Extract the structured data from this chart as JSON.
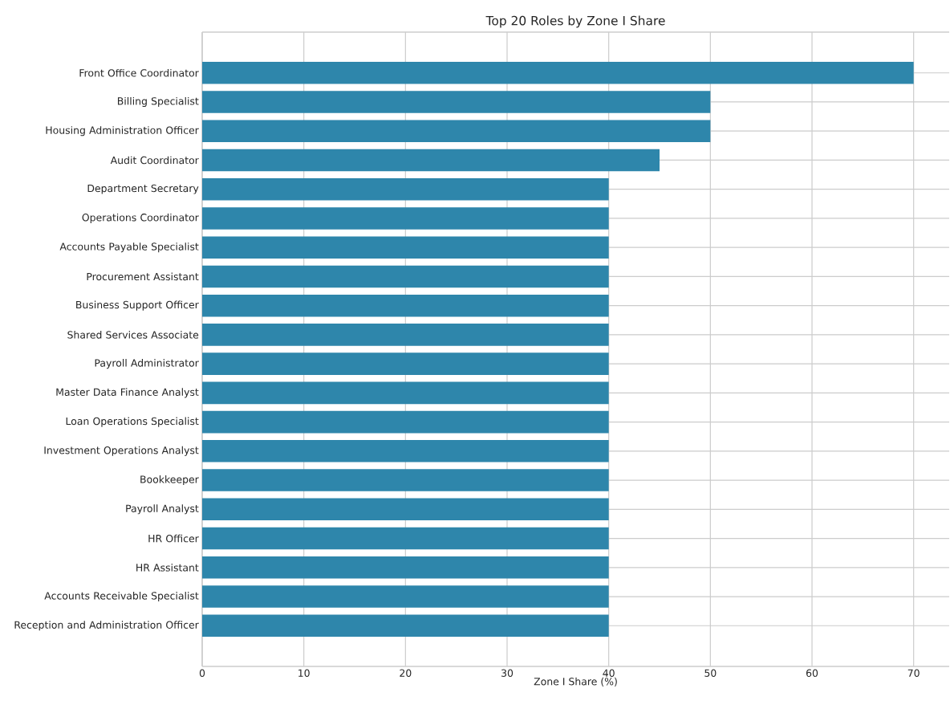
{
  "chart_data": {
    "type": "bar",
    "orientation": "horizontal",
    "title": "Top 20 Roles by Zone I Share",
    "xlabel": "Zone I Share (%)",
    "categories": [
      "Front Office Coordinator",
      "Billing Specialist",
      "Housing Administration Officer",
      "Audit Coordinator",
      "Department Secretary",
      "Operations Coordinator",
      "Accounts Payable Specialist",
      "Procurement Assistant",
      "Business Support Officer",
      "Shared Services Associate",
      "Payroll Administrator",
      "Master Data Finance Analyst",
      "Loan Operations Specialist",
      "Investment Operations Analyst",
      "Bookkeeper",
      "Payroll Analyst",
      "HR Officer",
      "HR Assistant",
      "Accounts Receivable Specialist",
      "Reception and Administration Officer"
    ],
    "values": [
      70,
      50,
      50,
      45,
      40,
      40,
      40,
      40,
      40,
      40,
      40,
      40,
      40,
      40,
      40,
      40,
      40,
      40,
      40,
      40
    ],
    "color": "#2e86ab",
    "xlim": [
      0,
      73.5
    ],
    "xticks": [
      0,
      10,
      20,
      30,
      40,
      50,
      60,
      70
    ],
    "grid": true
  }
}
